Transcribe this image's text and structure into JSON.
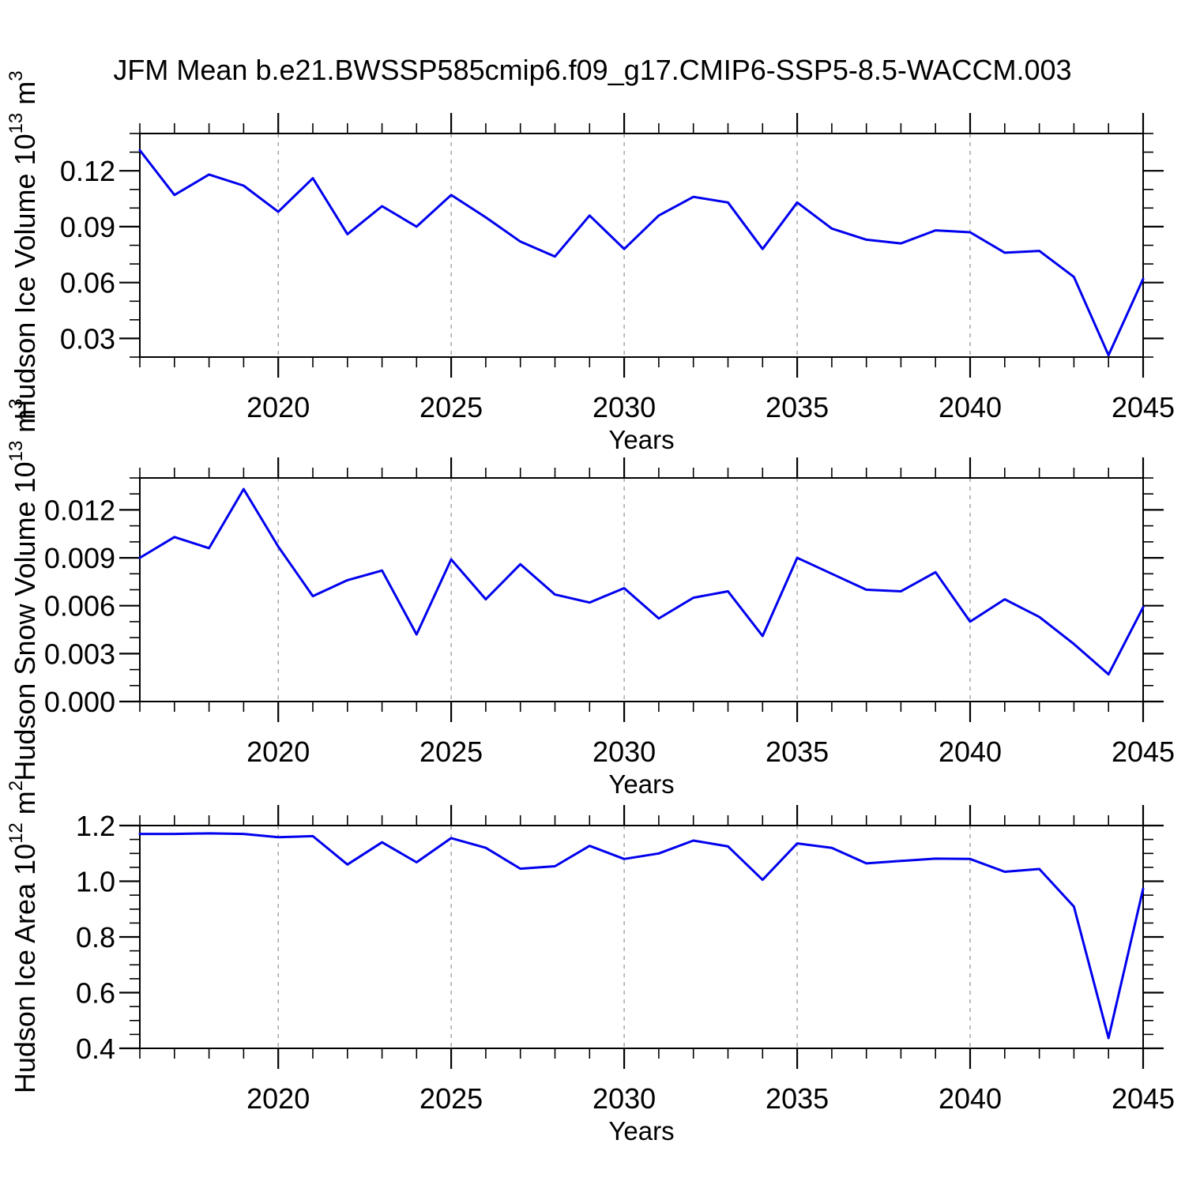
{
  "title": "JFM Mean b.e21.BWSSP585cmip6.f09_g17.CMIP6-SSP5-8.5-WACCM.003",
  "colors": {
    "line": "#0000ee",
    "axis": "#000000",
    "grid": "#909090",
    "text": "#000000",
    "background": "#ffffff"
  },
  "chart_data": [
    {
      "type": "line",
      "name": "hudson-ice-volume",
      "ylabel": "Hudson Ice Volume 10^13 m^3",
      "xlabel": "Years",
      "x": [
        2016,
        2017,
        2018,
        2019,
        2020,
        2021,
        2022,
        2023,
        2024,
        2025,
        2026,
        2027,
        2028,
        2029,
        2030,
        2031,
        2032,
        2033,
        2034,
        2035,
        2036,
        2037,
        2038,
        2039,
        2040,
        2041,
        2042,
        2043,
        2044,
        2045
      ],
      "values": [
        0.131,
        0.107,
        0.118,
        0.112,
        0.098,
        0.116,
        0.086,
        0.101,
        0.09,
        0.107,
        0.095,
        0.082,
        0.074,
        0.096,
        0.078,
        0.096,
        0.106,
        0.103,
        0.078,
        0.103,
        0.089,
        0.083,
        0.081,
        0.088,
        0.087,
        0.076,
        0.077,
        0.063,
        0.021,
        0.062
      ],
      "xlim": [
        2016,
        2045
      ],
      "ylim": [
        0.02,
        0.14
      ],
      "xticks": {
        "major": [
          2020,
          2025,
          2030,
          2035,
          2040,
          2045
        ],
        "labels": [
          "2020",
          "2025",
          "2030",
          "2035",
          "2040",
          "2045"
        ],
        "minor_step": 1
      },
      "yticks": {
        "major": [
          0.03,
          0.06,
          0.09,
          0.12
        ],
        "labels": [
          "0.03",
          "0.06",
          "0.09",
          "0.12"
        ],
        "minor_step": 0.01
      },
      "grid": "vertical-dashed-at-major-x",
      "legend": "none"
    },
    {
      "type": "line",
      "name": "hudson-snow-volume",
      "ylabel": "Hudson Snow Volume 10^13 m^3",
      "xlabel": "Years",
      "x": [
        2016,
        2017,
        2018,
        2019,
        2020,
        2021,
        2022,
        2023,
        2024,
        2025,
        2026,
        2027,
        2028,
        2029,
        2030,
        2031,
        2032,
        2033,
        2034,
        2035,
        2036,
        2037,
        2038,
        2039,
        2040,
        2041,
        2042,
        2043,
        2044,
        2045
      ],
      "values": [
        0.009,
        0.0103,
        0.0096,
        0.0133,
        0.0097,
        0.0066,
        0.0076,
        0.0082,
        0.0042,
        0.0089,
        0.0064,
        0.0086,
        0.0067,
        0.0062,
        0.0071,
        0.0052,
        0.0065,
        0.0069,
        0.0041,
        0.009,
        0.008,
        0.007,
        0.0069,
        0.0081,
        0.005,
        0.0064,
        0.0053,
        0.0036,
        0.0017,
        0.0059
      ],
      "xlim": [
        2016,
        2045
      ],
      "ylim": [
        0.0,
        0.014
      ],
      "xticks": {
        "major": [
          2020,
          2025,
          2030,
          2035,
          2040,
          2045
        ],
        "labels": [
          "2020",
          "2025",
          "2030",
          "2035",
          "2040",
          "2045"
        ],
        "minor_step": 1
      },
      "yticks": {
        "major": [
          0.0,
          0.003,
          0.006,
          0.009,
          0.012
        ],
        "labels": [
          "0.000",
          "0.003",
          "0.006",
          "0.009",
          "0.012"
        ],
        "minor_step": 0.001
      },
      "grid": "vertical-dashed-at-major-x",
      "legend": "none"
    },
    {
      "type": "line",
      "name": "hudson-ice-area",
      "ylabel": "Hudson Ice Area 10^12 m^2",
      "xlabel": "Years",
      "x": [
        2016,
        2017,
        2018,
        2019,
        2020,
        2021,
        2022,
        2023,
        2024,
        2025,
        2026,
        2027,
        2028,
        2029,
        2030,
        2031,
        2032,
        2033,
        2034,
        2035,
        2036,
        2037,
        2038,
        2039,
        2040,
        2041,
        2042,
        2043,
        2044,
        2045
      ],
      "values": [
        1.17,
        1.17,
        1.172,
        1.17,
        1.158,
        1.162,
        1.06,
        1.14,
        1.068,
        1.155,
        1.12,
        1.045,
        1.054,
        1.127,
        1.08,
        1.1,
        1.146,
        1.125,
        1.005,
        1.136,
        1.12,
        1.064,
        1.073,
        1.081,
        1.08,
        1.034,
        1.044,
        0.909,
        0.437,
        0.973
      ],
      "xlim": [
        2016,
        2045
      ],
      "ylim": [
        0.4,
        1.2
      ],
      "xticks": {
        "major": [
          2020,
          2025,
          2030,
          2035,
          2040,
          2045
        ],
        "labels": [
          "2020",
          "2025",
          "2030",
          "2035",
          "2040",
          "2045"
        ],
        "minor_step": 1
      },
      "yticks": {
        "major": [
          0.4,
          0.6,
          0.8,
          1.0,
          1.2
        ],
        "labels": [
          "0.4",
          "0.6",
          "0.8",
          "1.0",
          "1.2"
        ],
        "minor_step": 0.05
      },
      "grid": "vertical-dashed-at-major-x",
      "legend": "none"
    }
  ]
}
